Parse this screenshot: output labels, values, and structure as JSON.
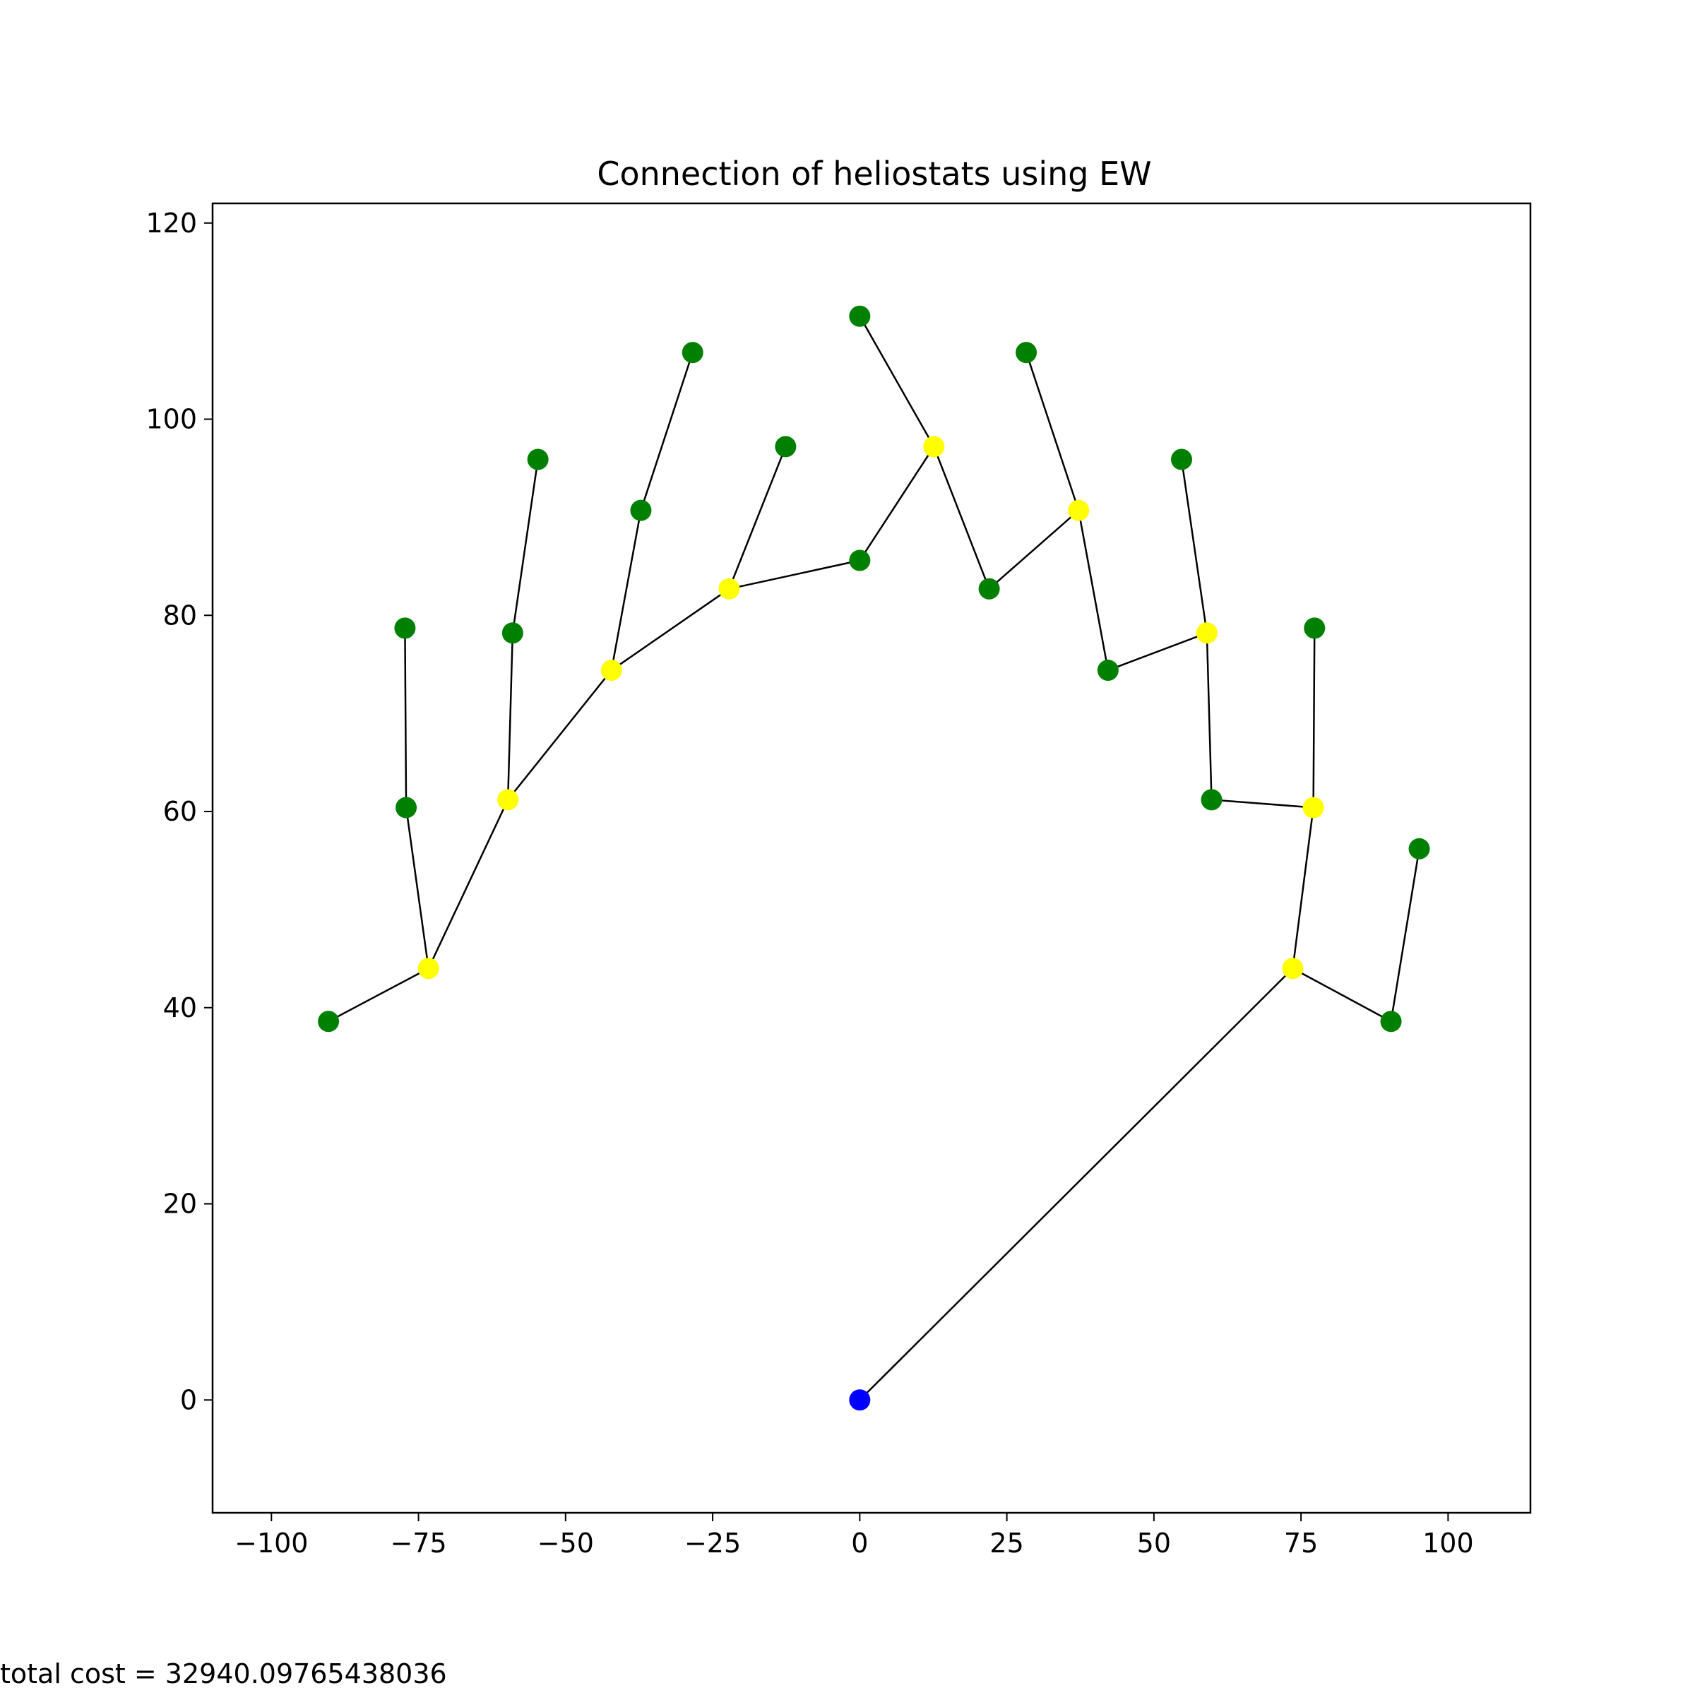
{
  "chart_data": {
    "type": "scatter",
    "title": "Connection of heliostats using EW",
    "xlabel": "",
    "ylabel": "",
    "xlim": [
      -110,
      114
    ],
    "ylim": [
      -11.5,
      122
    ],
    "xticks": [
      -100,
      -75,
      -50,
      -25,
      0,
      25,
      50,
      75,
      100
    ],
    "yticks": [
      0,
      20,
      40,
      60,
      80,
      100,
      120
    ],
    "grid": false,
    "colors": {
      "green": "#008000",
      "yellow": "#ffff00",
      "blue": "#0000ff",
      "edge": "#000000"
    },
    "nodes": [
      {
        "x": 0.0,
        "y": 0.0,
        "color": "blue"
      },
      {
        "x": -90.3,
        "y": 38.6,
        "color": "green"
      },
      {
        "x": -73.3,
        "y": 44.0,
        "color": "yellow"
      },
      {
        "x": -77.1,
        "y": 60.4,
        "color": "green"
      },
      {
        "x": -77.3,
        "y": 78.7,
        "color": "green"
      },
      {
        "x": -59.8,
        "y": 61.2,
        "color": "yellow"
      },
      {
        "x": -59.0,
        "y": 78.2,
        "color": "green"
      },
      {
        "x": -54.7,
        "y": 95.9,
        "color": "green"
      },
      {
        "x": -42.2,
        "y": 74.4,
        "color": "yellow"
      },
      {
        "x": -37.2,
        "y": 90.7,
        "color": "green"
      },
      {
        "x": -28.4,
        "y": 106.8,
        "color": "green"
      },
      {
        "x": -22.2,
        "y": 82.7,
        "color": "yellow"
      },
      {
        "x": -12.6,
        "y": 97.2,
        "color": "green"
      },
      {
        "x": 0.0,
        "y": 85.6,
        "color": "green"
      },
      {
        "x": 0.0,
        "y": 110.5,
        "color": "green"
      },
      {
        "x": 12.6,
        "y": 97.2,
        "color": "yellow"
      },
      {
        "x": 22.0,
        "y": 82.7,
        "color": "green"
      },
      {
        "x": 28.3,
        "y": 106.8,
        "color": "green"
      },
      {
        "x": 37.2,
        "y": 90.7,
        "color": "yellow"
      },
      {
        "x": 42.2,
        "y": 74.4,
        "color": "green"
      },
      {
        "x": 54.7,
        "y": 95.9,
        "color": "green"
      },
      {
        "x": 59.0,
        "y": 78.2,
        "color": "yellow"
      },
      {
        "x": 59.8,
        "y": 61.2,
        "color": "green"
      },
      {
        "x": 77.3,
        "y": 78.7,
        "color": "green"
      },
      {
        "x": 77.1,
        "y": 60.4,
        "color": "yellow"
      },
      {
        "x": 73.6,
        "y": 44.0,
        "color": "yellow"
      },
      {
        "x": 90.3,
        "y": 38.6,
        "color": "green"
      },
      {
        "x": 95.1,
        "y": 56.2,
        "color": "green"
      }
    ],
    "edges": [
      [
        1,
        2
      ],
      [
        2,
        3
      ],
      [
        3,
        4
      ],
      [
        2,
        5
      ],
      [
        5,
        6
      ],
      [
        6,
        7
      ],
      [
        5,
        8
      ],
      [
        8,
        9
      ],
      [
        9,
        10
      ],
      [
        8,
        11
      ],
      [
        11,
        12
      ],
      [
        11,
        13
      ],
      [
        13,
        15
      ],
      [
        15,
        14
      ],
      [
        15,
        16
      ],
      [
        16,
        18
      ],
      [
        18,
        17
      ],
      [
        18,
        19
      ],
      [
        19,
        21
      ],
      [
        21,
        20
      ],
      [
        21,
        22
      ],
      [
        22,
        24
      ],
      [
        24,
        23
      ],
      [
        24,
        25
      ],
      [
        25,
        0
      ],
      [
        25,
        26
      ],
      [
        26,
        27
      ]
    ]
  },
  "footer": {
    "total_cost": "total cost = 32940.09765438036"
  }
}
